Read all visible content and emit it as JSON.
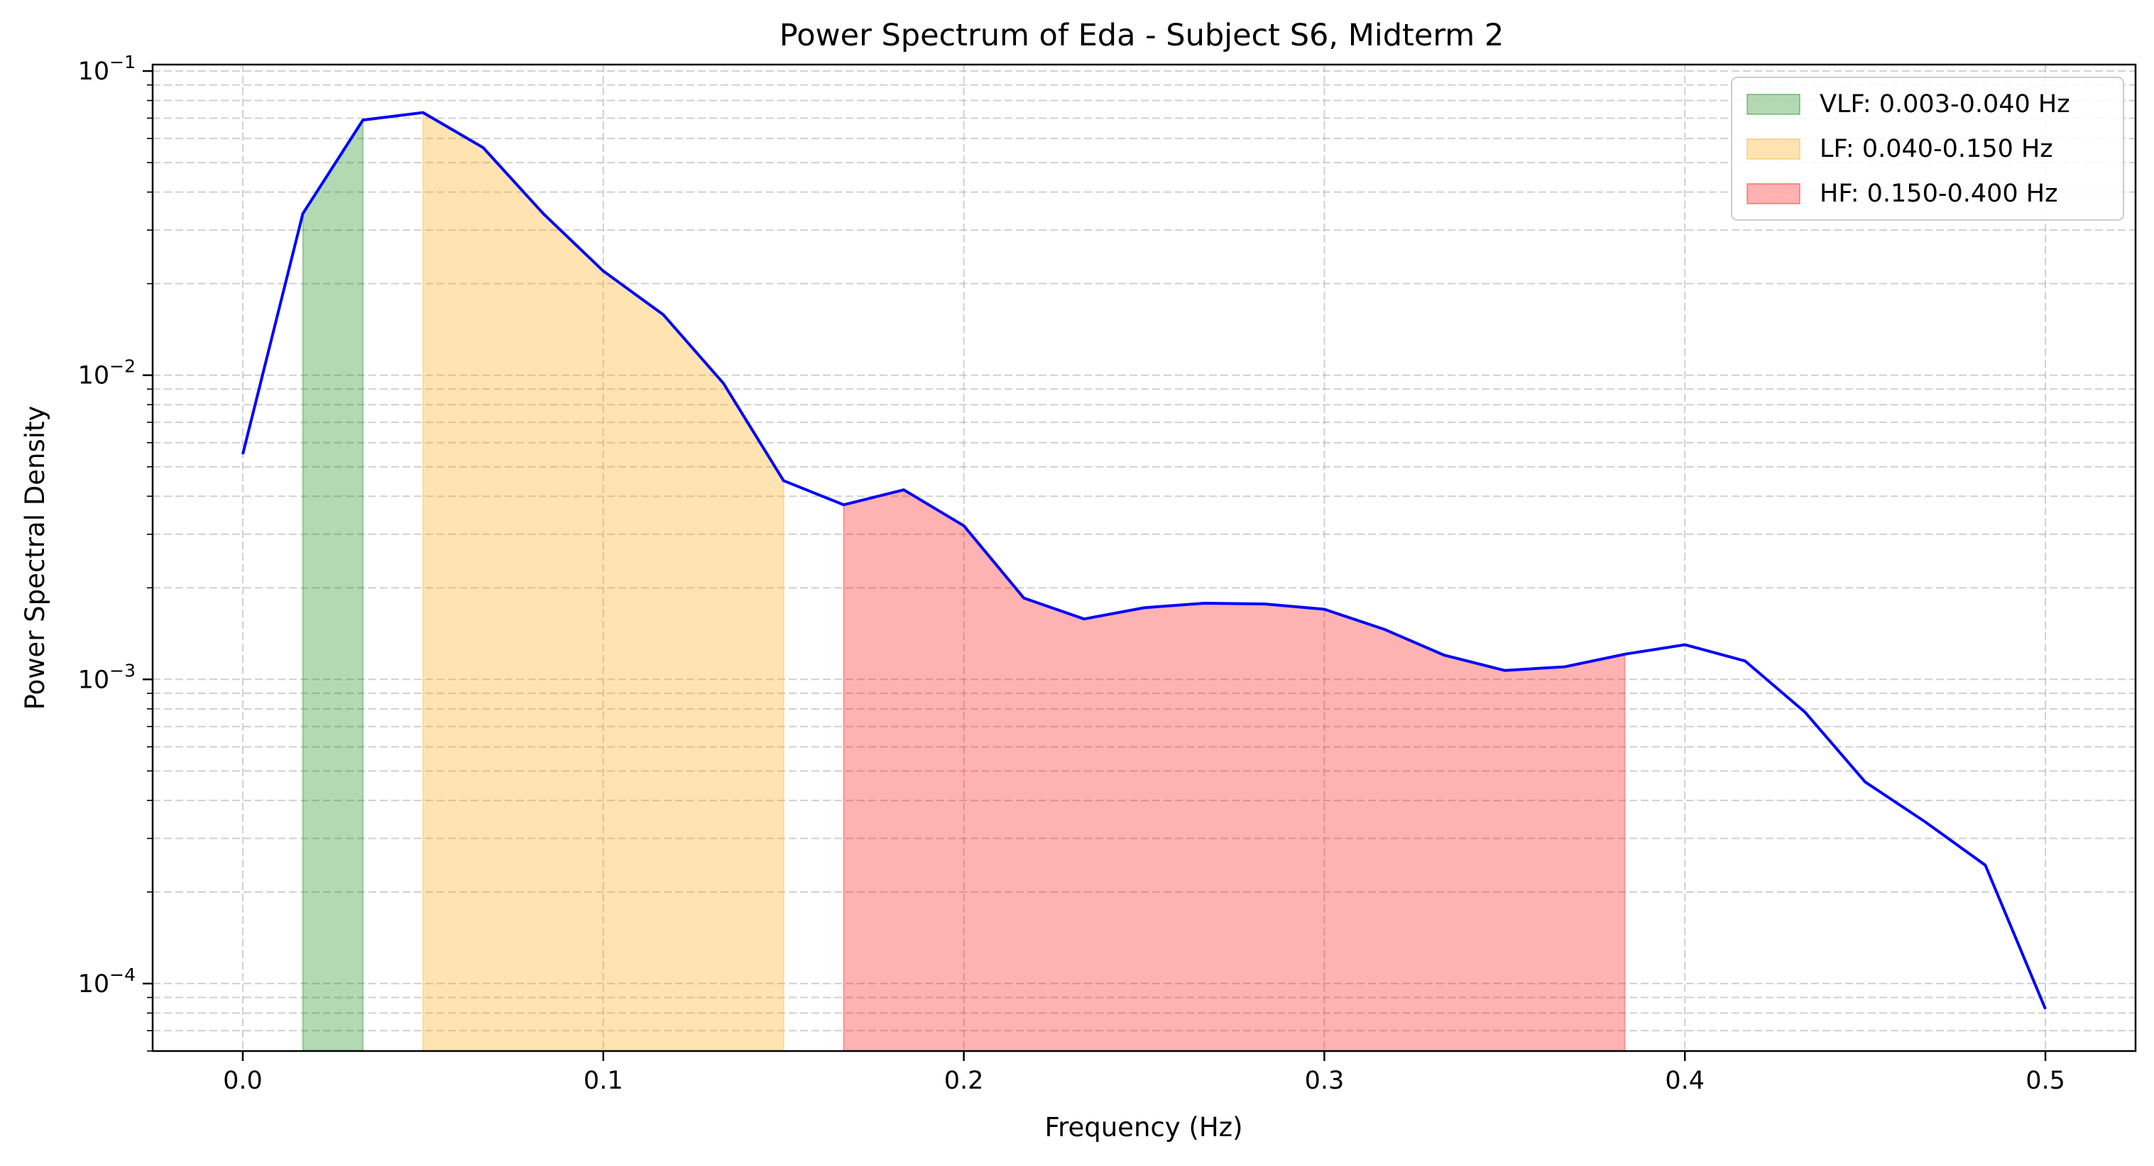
{
  "chart_data": {
    "type": "line",
    "title": "Power Spectrum of Eda - Subject S6, Midterm 2",
    "xlabel": "Frequency (Hz)",
    "ylabel": "Power Spectral Density",
    "xlim": [
      -0.025,
      0.525
    ],
    "ylim": [
      6e-05,
      0.105
    ],
    "yscale": "log",
    "grid": true,
    "legend_position": "top-right",
    "x_ticks": [
      {
        "value": 0.0,
        "label": "0.0"
      },
      {
        "value": 0.1,
        "label": "0.1"
      },
      {
        "value": 0.2,
        "label": "0.2"
      },
      {
        "value": 0.3,
        "label": "0.3"
      },
      {
        "value": 0.4,
        "label": "0.4"
      },
      {
        "value": 0.5,
        "label": "0.5"
      }
    ],
    "y_ticks": [
      {
        "value": 0.0001,
        "base": "10",
        "exp": "−4"
      },
      {
        "value": 0.001,
        "base": "10",
        "exp": "−3"
      },
      {
        "value": 0.01,
        "base": "10",
        "exp": "−2"
      },
      {
        "value": 0.1,
        "base": "10",
        "exp": "−1"
      }
    ],
    "line_color": "#0000ff",
    "x": [
      0.0,
      0.016667,
      0.033333,
      0.05,
      0.066667,
      0.083333,
      0.1,
      0.116667,
      0.133333,
      0.15,
      0.166667,
      0.183333,
      0.2,
      0.216667,
      0.233333,
      0.25,
      0.266667,
      0.283333,
      0.3,
      0.316667,
      0.333333,
      0.35,
      0.366667,
      0.383333,
      0.4,
      0.416667,
      0.433333,
      0.45,
      0.466667,
      0.483333,
      0.5
    ],
    "y": [
      0.0055,
      0.034,
      0.069,
      0.073,
      0.056,
      0.034,
      0.022,
      0.0158,
      0.0094,
      0.0045,
      0.00375,
      0.0042,
      0.0032,
      0.00185,
      0.00158,
      0.00172,
      0.00178,
      0.00177,
      0.0017,
      0.00146,
      0.0012,
      0.00107,
      0.0011,
      0.00121,
      0.0013,
      0.00115,
      0.00078,
      0.00046,
      0.00034,
      0.000245,
      8.25e-05
    ],
    "bands": [
      {
        "label": "VLF: 0.003-0.040 Hz",
        "color": "#008000",
        "opacity": 0.3,
        "start": 1,
        "end": 2
      },
      {
        "label": "LF: 0.040-0.150 Hz",
        "color": "#ffa500",
        "opacity": 0.3,
        "start": 3,
        "end": 9
      },
      {
        "label": "HF: 0.150-0.400 Hz",
        "color": "#ff0000",
        "opacity": 0.3,
        "start": 10,
        "end": 23
      }
    ]
  }
}
